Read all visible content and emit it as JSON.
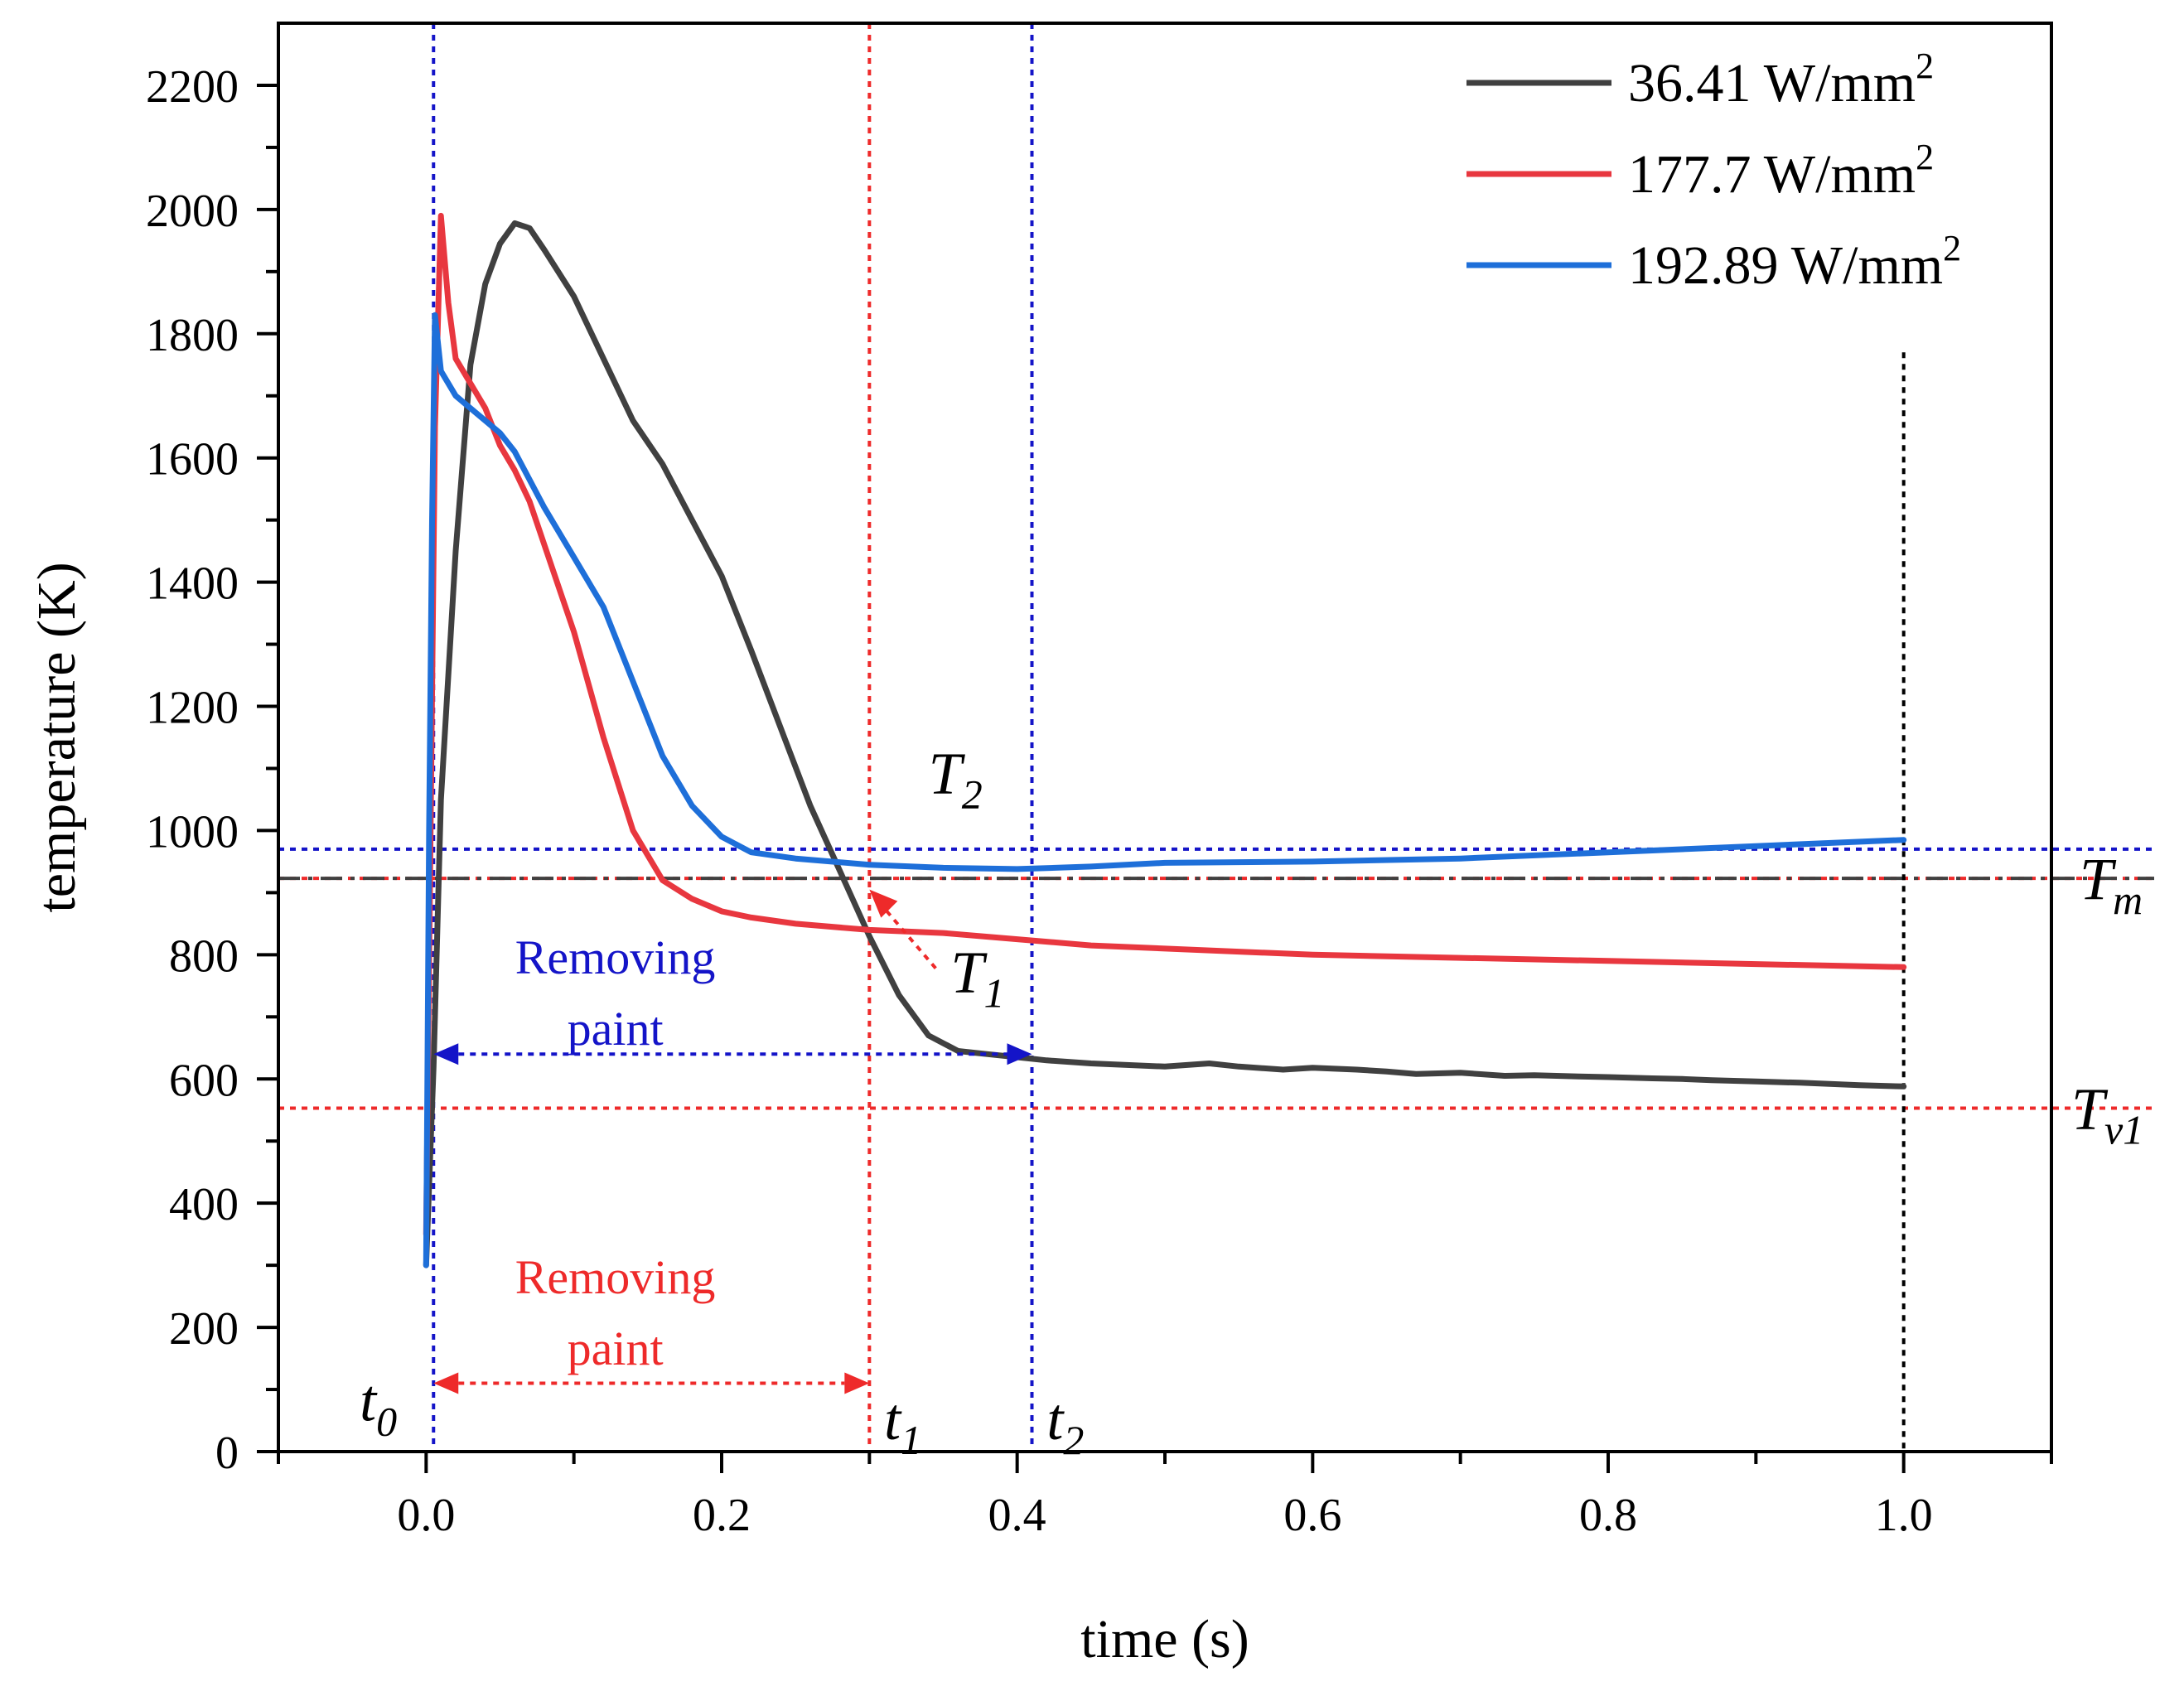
{
  "chart_data": {
    "type": "line",
    "title": "",
    "xlabel": "time (s)",
    "ylabel": "temperature (K)",
    "xlim": [
      -0.1,
      1.1
    ],
    "ylim": [
      0,
      2300
    ],
    "xticks": [
      0.0,
      0.2,
      0.4,
      0.6,
      0.8,
      1.0
    ],
    "xtick_labels": [
      "0.0",
      "0.2",
      "0.4",
      "0.6",
      "0.8",
      "1.0"
    ],
    "yticks": [
      0,
      200,
      400,
      600,
      800,
      1000,
      1200,
      1400,
      1600,
      1800,
      2000,
      2200
    ],
    "ytick_labels": [
      "0",
      "200",
      "400",
      "600",
      "800",
      "1000",
      "1200",
      "1400",
      "1600",
      "1800",
      "2000",
      "2200"
    ],
    "legend_position": "top-right",
    "series": [
      {
        "name": "36.41 W/mm",
        "name_sup": "2",
        "color": "#404040",
        "x": [
          0.0,
          0.005,
          0.01,
          0.02,
          0.03,
          0.04,
          0.05,
          0.06,
          0.07,
          0.08,
          0.1,
          0.12,
          0.14,
          0.16,
          0.18,
          0.2,
          0.22,
          0.24,
          0.26,
          0.28,
          0.3,
          0.32,
          0.34,
          0.36,
          0.38,
          0.4,
          0.42,
          0.45,
          0.5,
          0.53,
          0.55,
          0.58,
          0.6,
          0.63,
          0.65,
          0.67,
          0.7,
          0.73,
          0.75,
          0.78,
          0.8,
          0.83,
          0.85,
          0.87,
          0.9,
          0.93,
          0.95,
          0.97,
          1.0
        ],
        "y": [
          300,
          620,
          1050,
          1450,
          1750,
          1880,
          1945,
          1978,
          1970,
          1935,
          1860,
          1760,
          1660,
          1590,
          1500,
          1410,
          1290,
          1165,
          1040,
          935,
          830,
          735,
          670,
          645,
          640,
          635,
          630,
          625,
          620,
          625,
          620,
          615,
          618,
          615,
          612,
          608,
          610,
          605,
          606,
          604,
          603,
          601,
          600,
          598,
          596,
          594,
          592,
          590,
          588
        ]
      },
      {
        "name": "177.7 W/mm",
        "name_sup": "2",
        "color": "#e8373f",
        "x": [
          0.0,
          0.003,
          0.006,
          0.01,
          0.015,
          0.02,
          0.03,
          0.04,
          0.05,
          0.06,
          0.07,
          0.08,
          0.1,
          0.12,
          0.14,
          0.16,
          0.18,
          0.2,
          0.22,
          0.25,
          0.3,
          0.35,
          0.4,
          0.45,
          0.5,
          0.6,
          0.7,
          0.8,
          0.9,
          1.0
        ],
        "y": [
          350,
          1000,
          1650,
          1990,
          1850,
          1760,
          1720,
          1680,
          1620,
          1580,
          1530,
          1460,
          1320,
          1150,
          1000,
          920,
          890,
          870,
          860,
          850,
          840,
          835,
          825,
          815,
          810,
          800,
          795,
          790,
          785,
          780
        ]
      },
      {
        "name": "192.89 W/mm",
        "name_sup": "2",
        "color": "#1e6fd9",
        "x": [
          0.0,
          0.002,
          0.004,
          0.006,
          0.01,
          0.02,
          0.03,
          0.04,
          0.05,
          0.06,
          0.08,
          0.1,
          0.12,
          0.14,
          0.16,
          0.18,
          0.2,
          0.22,
          0.25,
          0.3,
          0.35,
          0.4,
          0.45,
          0.5,
          0.6,
          0.7,
          0.8,
          0.9,
          1.0
        ],
        "y": [
          300,
          1000,
          1500,
          1830,
          1740,
          1700,
          1680,
          1660,
          1640,
          1610,
          1520,
          1440,
          1360,
          1240,
          1120,
          1040,
          990,
          965,
          955,
          945,
          940,
          938,
          942,
          948,
          950,
          955,
          965,
          975,
          985
        ]
      }
    ],
    "reference_lines": [
      {
        "orientation": "horizontal",
        "value": 970,
        "color": "#1414c8",
        "style": "dotted"
      },
      {
        "orientation": "horizontal",
        "value": 923,
        "color": "#ee2a2a",
        "style": "dotted"
      },
      {
        "orientation": "horizontal",
        "value": 923,
        "color": "#404040",
        "style": "dash-dot"
      },
      {
        "orientation": "horizontal",
        "value": 553,
        "color": "#ee2a2a",
        "style": "dotted"
      },
      {
        "orientation": "vertical",
        "value": 0.005,
        "color": "#1414c8",
        "style": "dotted"
      },
      {
        "orientation": "vertical",
        "value": 0.3,
        "color": "#ee2a2a",
        "style": "dotted"
      },
      {
        "orientation": "vertical",
        "value": 0.41,
        "color": "#1414c8",
        "style": "dotted"
      },
      {
        "orientation": "vertical",
        "value": 1.0,
        "color": "#000000",
        "style": "dotted",
        "ymax": 1770
      }
    ],
    "annotations": {
      "T2": {
        "main": "T",
        "sub": "2"
      },
      "T1": {
        "main": "T",
        "sub": "1"
      },
      "Tm": {
        "main": "T",
        "sub": "m"
      },
      "Tv1": {
        "main": "T",
        "sub": "v1"
      },
      "t0": {
        "main": "t",
        "sub": "0"
      },
      "t1": {
        "main": "t",
        "sub": "1"
      },
      "t2": {
        "main": "t",
        "sub": "2"
      },
      "removing_blue": {
        "line1": "Removing",
        "line2": "paint",
        "color": "#1414c8"
      },
      "removing_red": {
        "line1": "Removing",
        "line2": "paint",
        "color": "#ee2a2a"
      }
    }
  }
}
